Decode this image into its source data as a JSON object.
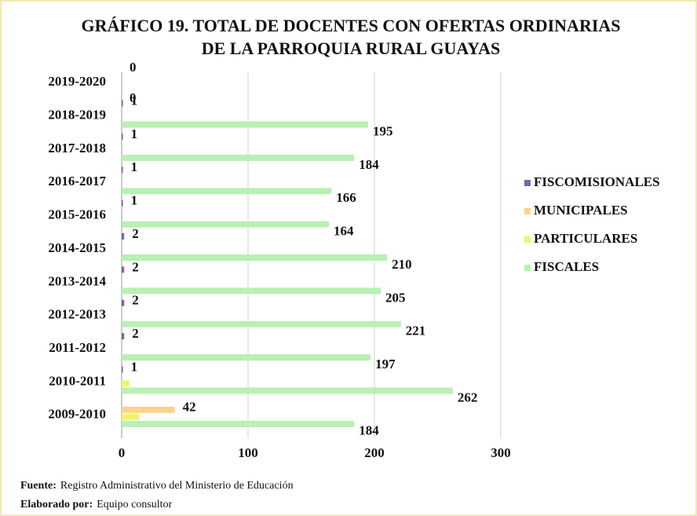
{
  "chart_data": {
    "type": "hbar",
    "title": "GRÁFICO 19. TOTAL DE DOCENTES CON OFERTAS ORDINARIAS",
    "subtitle": "DE LA PARROQUIA RURAL GUAYAS",
    "categories": [
      "2009-2010",
      "2010-2011",
      "2011-2012",
      "2012-2013",
      "2013-2014",
      "2014-2015",
      "2015-2016",
      "2016-2017",
      "2017-2018",
      "2018-2019",
      "2019-2020"
    ],
    "series": [
      {
        "name": "FISCOMISIONALES",
        "color": "#8064a2",
        "data_labels": true,
        "values": [
          null,
          1,
          2,
          2,
          2,
          2,
          1,
          1,
          1,
          1,
          0
        ]
      },
      {
        "name": "MUNICIPALES",
        "color": "#fbd38f",
        "data_labels": true,
        "values": [
          42,
          null,
          null,
          null,
          null,
          null,
          null,
          null,
          null,
          null,
          null
        ]
      },
      {
        "name": "PARTICULARES",
        "color": "#f3f36a",
        "data_labels": false,
        "values": [
          14,
          6,
          null,
          null,
          null,
          null,
          null,
          null,
          null,
          null,
          null
        ]
      },
      {
        "name": "FISCALES",
        "color": "#b9f0b3",
        "data_labels": true,
        "values": [
          184,
          262,
          197,
          221,
          205,
          210,
          164,
          166,
          184,
          195,
          0
        ]
      }
    ],
    "xlim": [
      0,
      300
    ],
    "xticks": [
      0,
      100,
      200,
      300
    ],
    "grid": true,
    "legend": "right",
    "notes": [
      {
        "label": "Fuente:",
        "text": "Registro Administrativo del Ministerio de Educación"
      },
      {
        "label": "Elaborado por:",
        "text": "Equipo consultor"
      }
    ]
  }
}
